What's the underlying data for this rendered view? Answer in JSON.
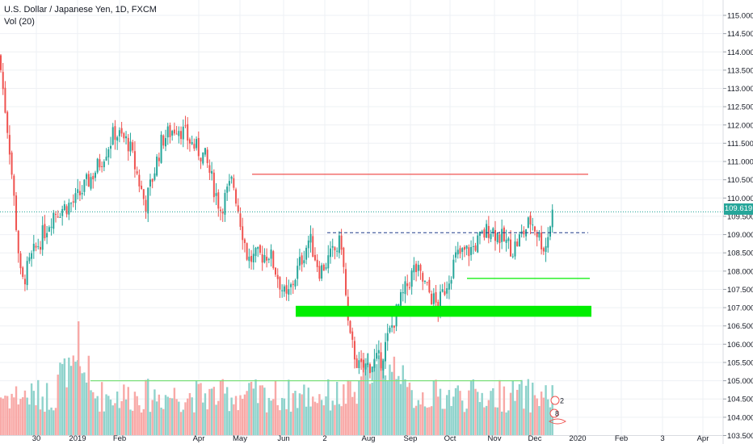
{
  "header": {
    "symbol_title": "U.S. Dollar / Japanese Yen, 1D, FXCM",
    "volume_label": "Vol (20)"
  },
  "last_price": "109.619",
  "badges": [
    "2",
    "8"
  ],
  "colors": {
    "up": "#26a69a",
    "down": "#ef5350",
    "vol_up": "#8fd3cc",
    "vol_down": "#f8a9a7",
    "resistance": "#ef5350",
    "support": "#00ee00",
    "grid": "#eef0f4",
    "dashed_level": "#1e3a8a"
  },
  "chart_data": {
    "type": "candlestick",
    "symbol": "USDJPY",
    "y_axis": {
      "ylim": [
        103.5,
        115.25
      ],
      "ticks": [
        "115.000",
        "114.500",
        "114.000",
        "113.500",
        "113.000",
        "112.500",
        "112.000",
        "111.500",
        "111.000",
        "110.500",
        "110.000",
        "109.500",
        "109.000",
        "108.500",
        "108.000",
        "107.500",
        "107.000",
        "106.500",
        "106.000",
        "105.500",
        "105.000",
        "104.500",
        "104.000",
        "103.500"
      ]
    },
    "x_axis": {
      "ticks": [
        "30",
        "2019",
        "Feb",
        "Apr",
        "May",
        "Jun",
        "2",
        "Aug",
        "Sep",
        "Oct",
        "Nov",
        "Dec",
        "2020",
        "Feb",
        "3",
        "Apr"
      ]
    },
    "close_path": [
      [
        "2018-12-20",
        113.7
      ],
      [
        "2018-12-26",
        111.5
      ],
      [
        "2019-01-03",
        107.6
      ],
      [
        "2019-01-10",
        108.4
      ],
      [
        "2019-01-24",
        109.6
      ],
      [
        "2019-02-07",
        109.9
      ],
      [
        "2019-02-21",
        110.8
      ],
      [
        "2019-03-05",
        111.8
      ],
      [
        "2019-03-14",
        111.5
      ],
      [
        "2019-03-25",
        109.8
      ],
      [
        "2019-04-05",
        111.6
      ],
      [
        "2019-04-15",
        112.0
      ],
      [
        "2019-04-24",
        111.5
      ],
      [
        "2019-05-03",
        111.1
      ],
      [
        "2019-05-13",
        109.7
      ],
      [
        "2019-05-21",
        110.5
      ],
      [
        "2019-05-31",
        108.3
      ],
      [
        "2019-06-14",
        108.5
      ],
      [
        "2019-06-25",
        107.2
      ],
      [
        "2019-07-10",
        108.9
      ],
      [
        "2019-07-17",
        108.0
      ],
      [
        "2019-07-31",
        108.8
      ],
      [
        "2019-08-05",
        106.2
      ],
      [
        "2019-08-12",
        105.3
      ],
      [
        "2019-08-26",
        105.6
      ],
      [
        "2019-09-06",
        107.0
      ],
      [
        "2019-09-17",
        108.1
      ],
      [
        "2019-10-02",
        107.0
      ],
      [
        "2019-10-14",
        108.4
      ],
      [
        "2019-10-24",
        108.6
      ],
      [
        "2019-11-05",
        109.2
      ],
      [
        "2019-11-20",
        108.6
      ],
      [
        "2019-12-02",
        109.4
      ],
      [
        "2019-12-11",
        108.6
      ],
      [
        "2019-12-16",
        109.619
      ]
    ],
    "drawn_levels": [
      {
        "kind": "horizontal-ray",
        "price": 110.65,
        "color": "red"
      },
      {
        "kind": "horizontal-ray",
        "price": 109.05,
        "style": "dashed"
      },
      {
        "kind": "horizontal-ray",
        "price": 107.8,
        "color": "green"
      },
      {
        "kind": "zone",
        "price_from": 106.75,
        "price_to": 107.05,
        "color": "green"
      },
      {
        "kind": "horizontal-ray",
        "price": 105.0,
        "color": "green"
      }
    ],
    "current_price": 109.619,
    "volume_series_name": "Vol (20)"
  }
}
